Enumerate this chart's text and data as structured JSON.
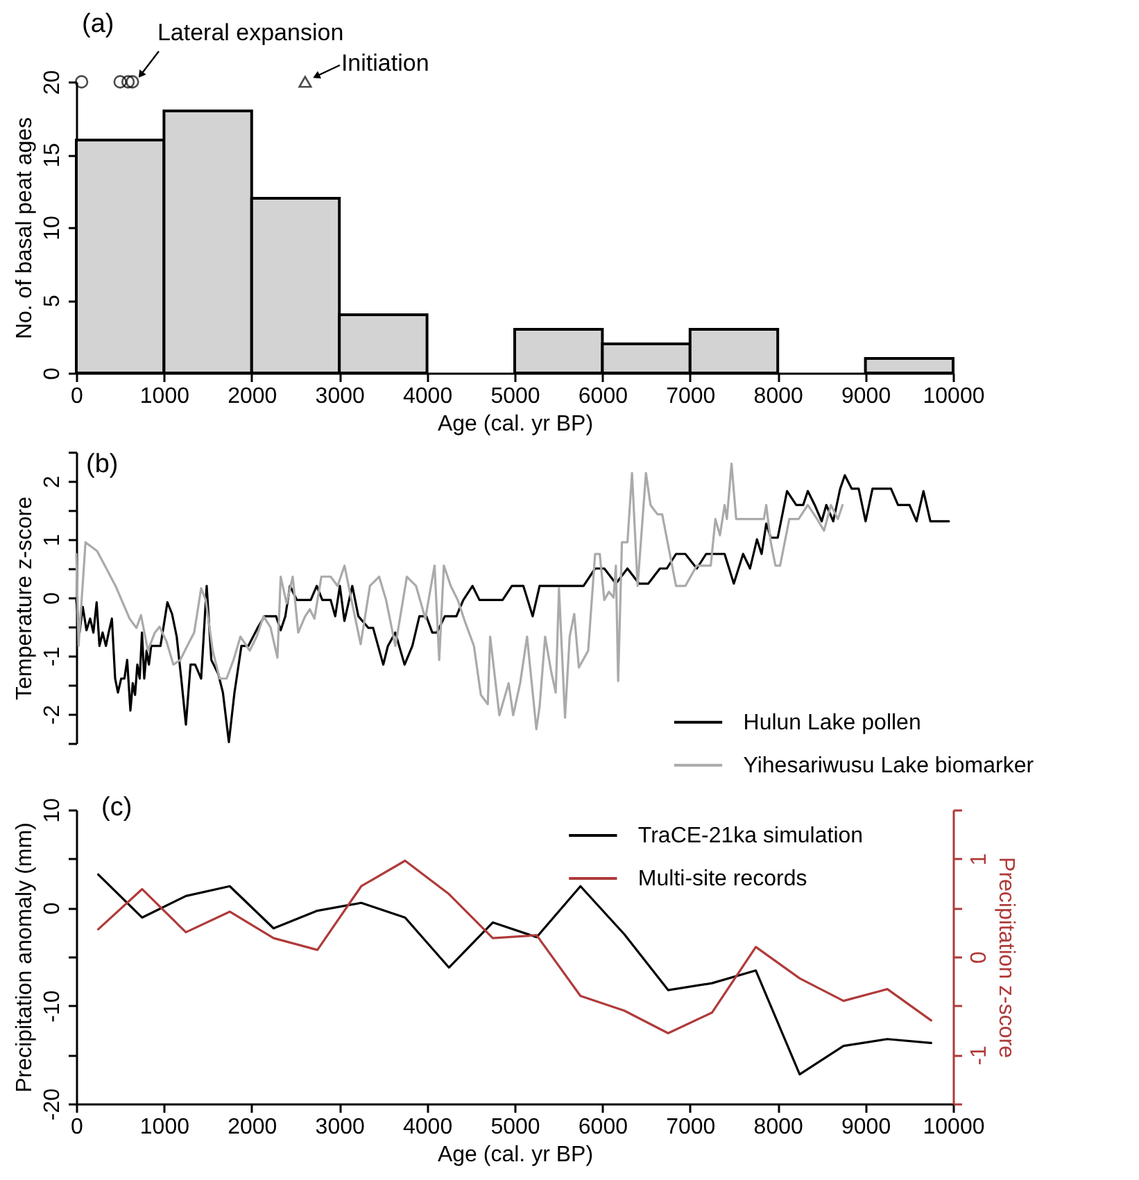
{
  "chart_data": [
    {
      "type": "histogram",
      "title": "(a)",
      "xlabel": "Age (cal. yr BP)",
      "ylabel": "No. of basal peat ages",
      "bins": [
        0,
        1000,
        2000,
        3000,
        4000,
        5000,
        6000,
        7000,
        8000,
        9000,
        10000
      ],
      "values": [
        16,
        18,
        12,
        4,
        0,
        3,
        2,
        3,
        0,
        1
      ],
      "color": "#d3d3d3",
      "xlim": [
        0,
        10000
      ],
      "xticks": [
        0,
        1000,
        2000,
        3000,
        4000,
        5000,
        6000,
        7000,
        8000,
        9000,
        10000
      ],
      "ylim": [
        0,
        20
      ],
      "yticks": [
        0,
        5,
        10,
        15,
        20
      ],
      "series": [
        {
          "type": "scatter",
          "x": [
            60,
            500,
            590,
            640
          ],
          "values": [
            20,
            20,
            20,
            20
          ],
          "marker": "circle",
          "color": "#000000"
        },
        {
          "type": "scatter",
          "x": [
            2610
          ],
          "values": [
            20
          ],
          "marker": "triangle",
          "color": "#000000"
        }
      ],
      "annotations": [
        {
          "text": "Lateral expansion",
          "x": 640,
          "y": 20
        },
        {
          "text": "Initiation",
          "x": 2610,
          "y": 20
        }
      ]
    },
    {
      "type": "line",
      "title": "(b)",
      "ylabel": "Temperature z-score",
      "xlim": [
        0,
        10000
      ],
      "ylim": [
        -2.5,
        2.5
      ],
      "yticks": [
        {
          "value": -2.5,
          "label": null
        },
        -2,
        {
          "value": -1.5,
          "label": null
        },
        -1,
        {
          "value": -0.5,
          "label": null
        },
        0,
        {
          "value": 0.5,
          "label": null
        },
        1,
        {
          "value": 1.5,
          "label": null
        },
        2,
        {
          "value": 2.5,
          "label": null
        }
      ],
      "tick_labels": "y",
      "legend": "bottom right",
      "series": [
        {
          "name": "Hulun Lake pollen",
          "color": "#000000",
          "x": [
            0,
            37,
            74,
            116,
            158,
            195,
            232,
            264,
            300,
            338,
            369,
            406,
            443,
            475,
            512,
            549,
            580,
            617,
            644,
            670,
            696,
            723,
            749,
            775,
            802,
            828,
            854,
            907,
            960,
            1039,
            1092,
            1145,
            1197,
            1250,
            1303,
            1355,
            1424,
            1487,
            1540,
            1619,
            1672,
            1740,
            1804,
            1883,
            1962,
            2068,
            2147,
            2226,
            2279,
            2331,
            2384,
            2437,
            2516,
            2621,
            2674,
            2742,
            2806,
            2901,
            2953,
            3006,
            3058,
            3148,
            3217,
            3332,
            3385,
            3501,
            3554,
            3638,
            3744,
            3833,
            3913,
            3992,
            4060,
            4113,
            4203,
            4335,
            4414,
            4519,
            4598,
            4704,
            4862,
            4968,
            5099,
            5205,
            5284,
            5442,
            5785,
            5917,
            6022,
            6154,
            6286,
            6418,
            6524,
            6656,
            6735,
            6840,
            6946,
            7077,
            7183,
            7394,
            7499,
            7605,
            7684,
            7763,
            7816,
            7869,
            7921,
            8000,
            8106,
            8211,
            8290,
            8343,
            8422,
            8501,
            8554,
            8633,
            8712,
            8765,
            8844,
            8923,
            9002,
            9081,
            9292,
            9372,
            9503,
            9583,
            9662,
            9741,
            9952
          ],
          "values": [
            -0.04,
            -0.6,
            -0.16,
            -0.56,
            -0.36,
            -0.6,
            -0.08,
            -0.83,
            -0.6,
            -0.83,
            -0.6,
            -0.36,
            -1.39,
            -1.63,
            -1.39,
            -1.39,
            -1.07,
            -1.94,
            -1.47,
            -1.67,
            -1.15,
            -1.39,
            -0.6,
            -1.39,
            -0.91,
            -1.15,
            -0.83,
            -0.83,
            -0.83,
            -0.08,
            -0.28,
            -0.67,
            -1.39,
            -2.18,
            -1.15,
            -1.15,
            -1.39,
            0.2,
            -1.07,
            -1.31,
            -1.63,
            -2.48,
            -1.63,
            -0.83,
            -0.83,
            -0.52,
            -0.32,
            -0.32,
            -0.32,
            -0.56,
            -0.32,
            0.2,
            -0.04,
            -0.04,
            -0.04,
            0.2,
            -0.04,
            -0.04,
            -0.32,
            0.2,
            -0.4,
            0.2,
            -0.32,
            -0.52,
            -0.52,
            -1.15,
            -0.83,
            -0.6,
            -1.15,
            -0.83,
            -0.32,
            -0.32,
            -0.6,
            -0.6,
            -0.32,
            -0.32,
            -0.04,
            0.2,
            -0.04,
            -0.04,
            -0.04,
            0.2,
            0.2,
            -0.32,
            0.2,
            0.2,
            0.2,
            0.5,
            0.5,
            0.24,
            0.5,
            0.24,
            0.24,
            0.5,
            0.5,
            0.75,
            0.75,
            0.5,
            0.75,
            0.75,
            0.24,
            0.75,
            0.5,
            1.0,
            0.75,
            1.27,
            1.03,
            1.03,
            1.83,
            1.59,
            1.59,
            1.83,
            1.59,
            1.31,
            1.59,
            1.31,
            1.87,
            2.1,
            1.87,
            1.87,
            1.31,
            1.87,
            1.87,
            1.59,
            1.59,
            1.31,
            1.83,
            1.31,
            1.31
          ]
        },
        {
          "name": "Yihesariwusu Lake biomarker",
          "color": "#aaaaaa",
          "x": [
            0,
            26,
            105,
            237,
            343,
            448,
            607,
            686,
            738,
            817,
            896,
            949,
            1028,
            1107,
            1186,
            1265,
            1344,
            1424,
            1476,
            1556,
            1635,
            1714,
            1793,
            1872,
            1978,
            2057,
            2136,
            2215,
            2294,
            2331,
            2399,
            2468,
            2531,
            2610,
            2663,
            2716,
            2795,
            2901,
            2980,
            3059,
            3138,
            3243,
            3349,
            3454,
            3533,
            3639,
            3691,
            3770,
            3875,
            3981,
            4086,
            4139,
            4192,
            4271,
            4350,
            4430,
            4535,
            4614,
            4693,
            4720,
            4825,
            4931,
            4983,
            5062,
            5141,
            5247,
            5284,
            5347,
            5416,
            5468,
            5505,
            5574,
            5627,
            5679,
            5732,
            5838,
            5917,
            5970,
            6022,
            6075,
            6128,
            6154,
            6180,
            6223,
            6286,
            6338,
            6402,
            6497,
            6549,
            6629,
            6682,
            6840,
            6946,
            7077,
            7236,
            7289,
            7341,
            7394,
            7420,
            7473,
            7526,
            7842,
            7869,
            7921,
            7974,
            8027,
            8132,
            8238,
            8343,
            8449,
            8528,
            8607,
            8686,
            8739
          ],
          "values": [
            0.75,
            -0.83,
            0.95,
            0.8,
            0.5,
            0.2,
            -0.36,
            -0.52,
            -0.3,
            -0.91,
            -0.6,
            -0.5,
            -0.75,
            -1.15,
            -1.07,
            -0.83,
            -0.6,
            0.16,
            -0.04,
            -0.91,
            -1.39,
            -1.39,
            -1.07,
            -0.67,
            -0.91,
            -0.67,
            -0.32,
            -0.51,
            -1.03,
            0.36,
            -0.1,
            0.36,
            -0.6,
            -0.32,
            -0.2,
            -0.36,
            0.36,
            0.36,
            0.2,
            0.55,
            -0.04,
            -0.8,
            0.2,
            0.36,
            -0.04,
            -0.83,
            -0.36,
            0.36,
            0.2,
            -0.36,
            0.55,
            -1.07,
            0.55,
            0.2,
            -0.04,
            -0.4,
            -0.83,
            -1.67,
            -1.83,
            -0.67,
            -2.02,
            -1.47,
            -2.02,
            -1.47,
            -0.67,
            -2.26,
            -1.87,
            -0.67,
            -1.27,
            -1.63,
            0.16,
            -2.06,
            -0.67,
            -0.28,
            -1.2,
            -0.91,
            0.75,
            0.75,
            -0.04,
            0.1,
            0.0,
            0.55,
            -1.43,
            0.95,
            0.95,
            2.14,
            0.2,
            2.14,
            1.59,
            1.43,
            1.43,
            0.2,
            0.2,
            0.55,
            0.55,
            1.35,
            1.07,
            1.59,
            1.35,
            2.3,
            1.35,
            1.35,
            1.59,
            0.95,
            0.55,
            0.55,
            1.35,
            1.35,
            1.59,
            1.35,
            1.15,
            1.59,
            1.35,
            1.59
          ]
        }
      ]
    },
    {
      "type": "line",
      "title": "(c)",
      "xlabel": "Age (cal. yr BP)",
      "ylabel": "Precipitation anomaly (mm)",
      "y2label": "Precipitation z-score",
      "xlim": [
        0,
        10000
      ],
      "xticks": [
        0,
        1000,
        2000,
        3000,
        4000,
        5000,
        6000,
        7000,
        8000,
        9000,
        10000
      ],
      "ylim": [
        -20,
        10
      ],
      "yticks": [
        -20,
        {
          "value": -15,
          "label": null
        },
        -10,
        {
          "value": -5,
          "label": null
        },
        0,
        {
          "value": 5,
          "label": null
        },
        10
      ],
      "y2lim": [
        -1.5,
        1.5
      ],
      "y2ticks": [
        {
          "value": -1.5,
          "label": null
        },
        -1,
        {
          "value": -0.5,
          "label": null
        },
        0,
        {
          "value": 0.5,
          "label": null
        },
        1,
        {
          "value": 1.5,
          "label": null
        }
      ],
      "legend": "top right",
      "x": [
        250,
        750,
        1250,
        1750,
        2250,
        2750,
        3250,
        3750,
        4250,
        4750,
        5250,
        5750,
        6250,
        6750,
        7250,
        7750,
        8250,
        8750,
        9250,
        9750
      ],
      "series": [
        {
          "name": "TraCE-21ka simulation",
          "color": "#000000",
          "values": [
            3.4,
            -1.0,
            1.2,
            2.2,
            -2.1,
            -0.3,
            0.5,
            -1.0,
            -6.1,
            -1.5,
            -3.0,
            2.2,
            -2.7,
            -8.4,
            -7.7,
            -6.4,
            -17.0,
            -14.1,
            -13.4,
            -13.8
          ]
        },
        {
          "name": "Multi-site records",
          "color": "#b03a3a",
          "axis": "y2",
          "values": [
            0.28,
            0.69,
            0.25,
            0.46,
            0.19,
            0.07,
            0.72,
            0.98,
            0.64,
            0.19,
            0.22,
            -0.4,
            -0.55,
            -0.78,
            -0.57,
            0.1,
            -0.22,
            -0.45,
            -0.33,
            -0.65
          ]
        }
      ]
    }
  ]
}
